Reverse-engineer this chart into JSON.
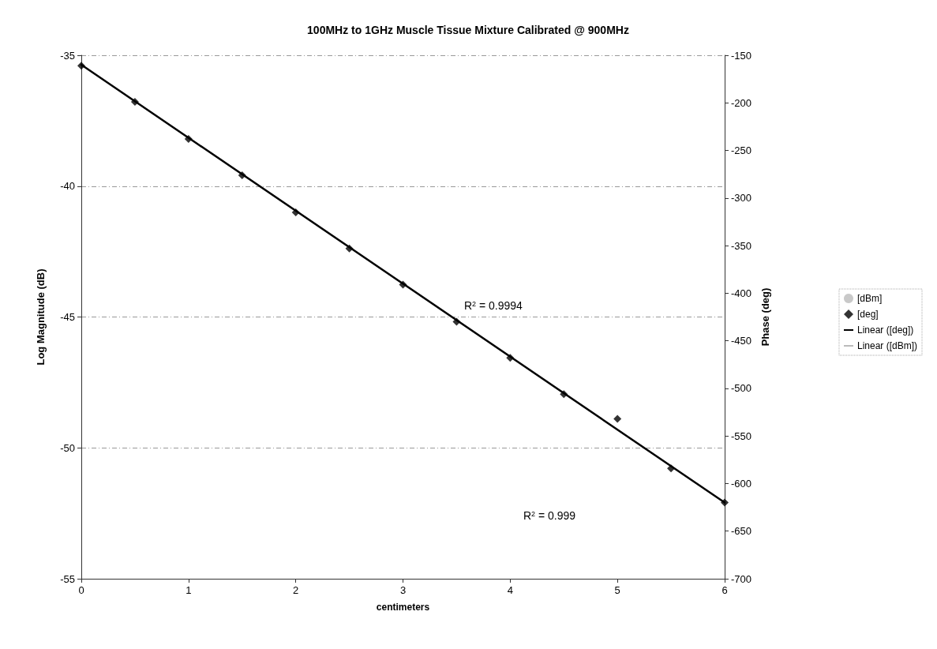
{
  "chart_data": {
    "type": "scatter",
    "title": "100MHz to 1GHz Muscle Tissue Mixture Calibrated @ 900MHz",
    "xlabel": "centimeters",
    "ylabel": "Log Magnitude (dB)",
    "y2label": "Phase (deg)",
    "x": [
      0,
      0.5,
      1,
      1.5,
      2,
      2.5,
      3,
      3.5,
      4,
      4.5,
      5,
      5.5,
      6
    ],
    "series": [
      {
        "name": "[dBm]",
        "type": "scatter",
        "color": "#bbbbbb",
        "values": [
          null,
          null,
          null,
          null,
          null,
          null,
          null,
          null,
          null,
          null,
          null,
          null,
          null
        ]
      },
      {
        "name": "[deg]",
        "type": "scatter",
        "axis": "y2",
        "color": "#000000",
        "marker": "diamond",
        "values": [
          -161,
          -199,
          -238,
          -276,
          -315,
          -353,
          -391,
          -430,
          -468,
          -506,
          -532,
          -584,
          -620
        ]
      },
      {
        "name": "Linear ([deg])",
        "type": "line",
        "axis": "y2",
        "color": "#000000",
        "x": [
          0,
          6
        ],
        "values": [
          -160,
          -620
        ]
      },
      {
        "name": "Linear ([dBm])",
        "type": "line",
        "color": "#bbbbbb",
        "values": [
          null,
          null,
          null,
          null,
          null,
          null,
          null,
          null,
          null,
          null,
          null,
          null,
          null
        ]
      }
    ],
    "xlim": [
      0,
      6
    ],
    "xticks": [
      0,
      1,
      2,
      3,
      4,
      5,
      6
    ],
    "ylim": [
      -55,
      -35
    ],
    "yticks": [
      -55,
      -50,
      -45,
      -40,
      -35
    ],
    "y2lim": [
      -700,
      -150
    ],
    "y2ticks": [
      -700,
      -650,
      -600,
      -550,
      -500,
      -450,
      -400,
      -350,
      -300,
      -250,
      -200,
      -150
    ],
    "grid": "y",
    "legend": "right",
    "line_style": "solid",
    "annotations": [
      "R$^{2}$ = 0.9994",
      "R$^{2}$ = 0.999"
    ]
  }
}
